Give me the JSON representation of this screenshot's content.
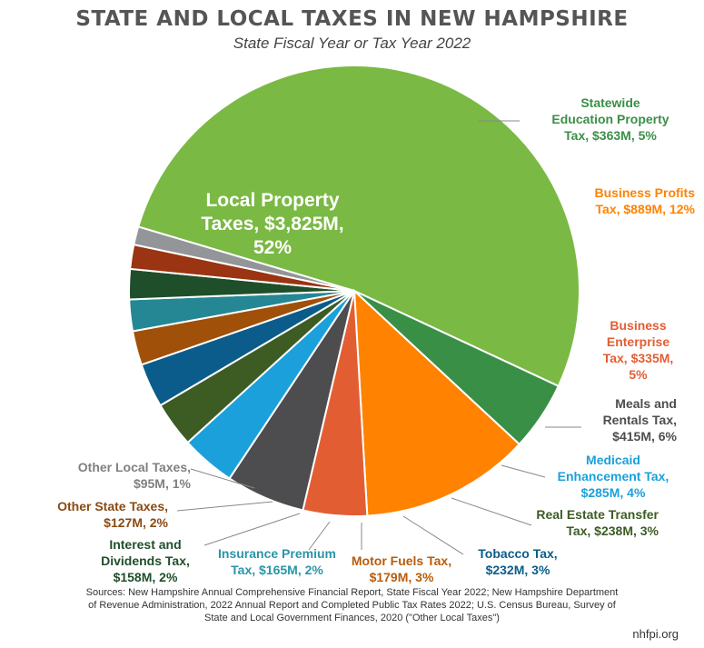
{
  "header": {
    "title": "STATE AND LOCAL TAXES IN NEW HAMPSHIRE",
    "subtitle": "State Fiscal Year or Tax Year 2022"
  },
  "chart_data": {
    "type": "pie",
    "start_angle_deg": 335,
    "direction": "counterclockwise",
    "slices": [
      {
        "lines": [
          "Local Property",
          "Taxes, $3,825M,",
          "52%"
        ],
        "value": 3825,
        "percent": 52,
        "color": "#7ab943",
        "label_color": "#ffffff"
      },
      {
        "lines": [
          "Statewide",
          "Education Property",
          "Tax, $363M, 5%"
        ],
        "value": 363,
        "percent": 5,
        "color": "#3a8f47",
        "label_color": "#3a8f47"
      },
      {
        "lines": [
          "Business Profits",
          "Tax, $889M, 12%"
        ],
        "value": 889,
        "percent": 12,
        "color": "#ff8200",
        "label_color": "#ff8200"
      },
      {
        "lines": [
          "Business",
          "Enterprise",
          "Tax, $335M,",
          "5%"
        ],
        "value": 335,
        "percent": 5,
        "color": "#e35d33",
        "label_color": "#e35d33"
      },
      {
        "lines": [
          "Meals and",
          "Rentals Tax,",
          "$415M, 6%"
        ],
        "value": 415,
        "percent": 6,
        "color": "#4d4d4f",
        "label_color": "#4d4d4f"
      },
      {
        "lines": [
          "Medicaid",
          "Enhancement Tax,",
          "$285M, 4%"
        ],
        "value": 285,
        "percent": 4,
        "color": "#1ba0db",
        "label_color": "#1ba0db"
      },
      {
        "lines": [
          "Real Estate Transfer",
          "Tax, $238M, 3%"
        ],
        "value": 238,
        "percent": 3,
        "color": "#3c5c24",
        "label_color": "#3c5c24"
      },
      {
        "lines": [
          "Tobacco Tax,",
          "$232M, 3%"
        ],
        "value": 232,
        "percent": 3,
        "color": "#0b5c8a",
        "label_color": "#0b5c8a"
      },
      {
        "lines": [
          "Motor Fuels Tax,",
          "$179M, 3%"
        ],
        "value": 179,
        "percent": 3,
        "color": "#a05008",
        "label_color": "#b85c0a"
      },
      {
        "lines": [
          "Insurance Premium",
          "Tax, $165M, 2%"
        ],
        "value": 165,
        "percent": 2,
        "color": "#258794",
        "label_color": "#2a95a8"
      },
      {
        "lines": [
          "Interest and",
          "Dividends Tax,",
          "$158M, 2%"
        ],
        "value": 158,
        "percent": 2,
        "color": "#1f4f2a",
        "label_color": "#1f4f2a"
      },
      {
        "lines": [
          "Other State Taxes,",
          "$127M, 2%"
        ],
        "value": 127,
        "percent": 2,
        "color": "#9a3412",
        "label_color": "#8a4a12"
      },
      {
        "lines": [
          "Other Local Taxes,",
          "$95M, 1%"
        ],
        "value": 95,
        "percent": 1,
        "color": "#939598",
        "label_color": "#808080"
      }
    ]
  },
  "sources": {
    "line1": "Sources: New Hampshire Annual Comprehensive Financial Report, State Fiscal Year 2022; New Hampshire Department",
    "line2": "of Revenue Administration, 2022 Annual Report and Completed Public Tax Rates 2022; U.S. Census Bureau, Survey of",
    "line3": "State and Local Government Finances, 2020 (\"Other Local Taxes\")"
  },
  "brand": "nhfpi.org"
}
